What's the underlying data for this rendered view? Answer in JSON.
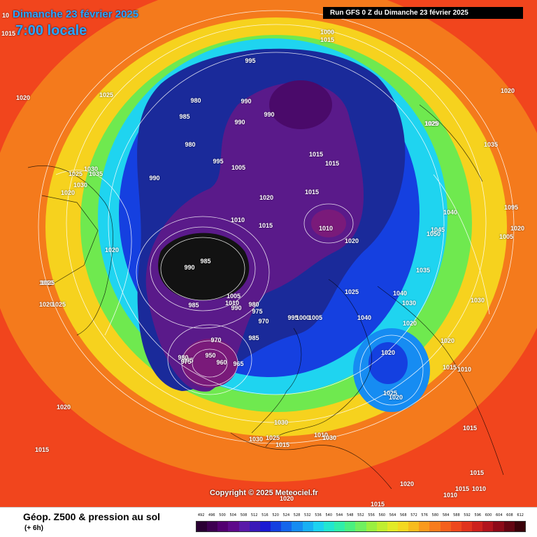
{
  "title": "Dimanche 23 février 2025",
  "local_time": "7:00 locale",
  "run_banner": "Run GFS 0 Z du Dimanche 23 février 2025",
  "copyright": "Copyright © 2025 Meteociel.fr",
  "legend": {
    "title": "Géop. Z500 & pression au sol",
    "subtitle": "(+ 6h)",
    "scale_values": [
      "492",
      "496",
      "500",
      "504",
      "508",
      "512",
      "516",
      "520",
      "524",
      "528",
      "532",
      "536",
      "540",
      "544",
      "548",
      "552",
      "556",
      "560",
      "564",
      "568",
      "572",
      "576",
      "580",
      "584",
      "588",
      "592",
      "596",
      "600",
      "604",
      "608",
      "612"
    ],
    "scale_colors": [
      "#2a0033",
      "#3d0050",
      "#520070",
      "#5e0a8a",
      "#5a1aa8",
      "#3a1ab8",
      "#1a1ad2",
      "#1440e0",
      "#1466ec",
      "#168cf2",
      "#18b0f4",
      "#1cd2f0",
      "#22e6d0",
      "#30eeaa",
      "#4af080",
      "#70f060",
      "#9af040",
      "#c0ee30",
      "#e2ea28",
      "#f4d822",
      "#f8bc1e",
      "#fa9a1c",
      "#f87c1c",
      "#f4601c",
      "#ee481c",
      "#e0341c",
      "#cc221c",
      "#b0141c",
      "#8c0a18",
      "#640512",
      "#3a020a"
    ]
  },
  "map": {
    "colors": {
      "outer": "#f1451d",
      "orange": "#f47a1c",
      "yellow": "#f6d21e",
      "green": "#6fe94f",
      "cyan": "#1fd4f0",
      "blue": "#1540e0",
      "navy": "#1a2a9a",
      "purple": "#5a1a8a",
      "magenta": "#7a1a7a",
      "dark": "#121212",
      "isobar": "#ffffff",
      "coast": "#000000"
    },
    "pressure_labels": [
      "10",
      "1015",
      "1020",
      "1025",
      "995",
      "1000",
      "1015",
      "1020",
      "1020",
      "1025",
      "1035",
      "980",
      "985",
      "990",
      "990",
      "980",
      "990",
      "995",
      "1005",
      "1020",
      "1015",
      "1015",
      "1015",
      "1010",
      "1030",
      "1035",
      "1030",
      "1025",
      "1020",
      "990",
      "1010",
      "1015",
      "1040",
      "1045",
      "1050",
      "1095",
      "1020",
      "1005",
      "1020",
      "985",
      "990",
      "1035",
      "1040",
      "1030",
      "1025",
      "1020",
      "1010",
      "1020",
      "1025",
      "1025",
      "985",
      "990",
      "1005",
      "1010",
      "980",
      "975",
      "995",
      "1000",
      "1005",
      "1040",
      "1030",
      "1020",
      "1020",
      "1020",
      "1015",
      "1010",
      "975",
      "970",
      "970",
      "985",
      "960",
      "965",
      "980",
      "975",
      "950",
      "1025",
      "1020",
      "1030",
      "1030",
      "1025",
      "1010",
      "1030",
      "1015",
      "1020",
      "1015",
      "1015",
      "1015",
      "1015",
      "1010",
      "1010",
      "1020",
      "1015",
      "1020"
    ]
  }
}
